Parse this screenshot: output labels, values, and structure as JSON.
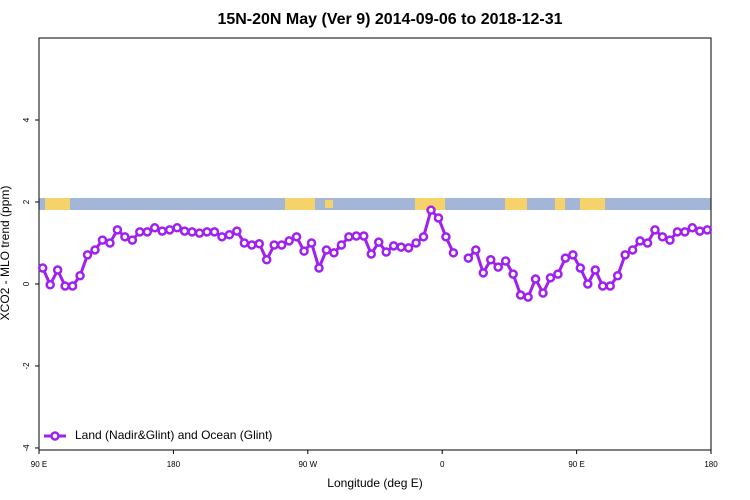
{
  "chart_data": {
    "type": "line",
    "title": "15N-20N May (Ver 9)   2014-09-06 to 2018-12-31",
    "x_label": "Longitude (deg E)",
    "y_label": "XCO2 - MLO trend (ppm)",
    "xlim": [
      90,
      540
    ],
    "xticks": [
      {
        "value": 90,
        "label": "90 E"
      },
      180,
      {
        "value": 270,
        "label": "90 W"
      },
      {
        "value": 360,
        "label": "0"
      },
      {
        "value": 450,
        "label": "90 E"
      },
      {
        "value": 540,
        "label": "180"
      }
    ],
    "ylim": [
      -4.05,
      6
    ],
    "yticks": [
      -4,
      -2,
      0,
      2,
      4
    ],
    "legend": "bottom-left",
    "x": [
      92.5,
      97.5,
      102.5,
      107.5,
      112.5,
      117.5,
      122.5,
      127.5,
      132.5,
      137.5,
      142.5,
      147.5,
      152.5,
      157.5,
      162.5,
      167.5,
      172.5,
      177.5,
      182.5,
      187.5,
      192.5,
      197.5,
      202.5,
      207.5,
      212.5,
      217.5,
      222.5,
      227.5,
      232.5,
      237.5,
      242.5,
      247.5,
      252.5,
      257.5,
      262.5,
      267.5,
      272.5,
      277.5,
      282.5,
      287.5,
      292.5,
      297.5,
      302.5,
      307.5,
      312.5,
      317.5,
      322.5,
      327.5,
      332.5,
      337.5,
      342.5,
      347.5,
      352.5,
      357.5,
      362.5,
      367.5,
      372.5,
      377.5,
      382.5,
      387.5,
      392.5,
      397.5,
      402.5,
      407.5,
      412.5,
      417.5,
      422.5,
      427.5,
      432.5,
      437.5,
      442.5,
      447.5,
      452.5,
      457.5,
      462.5,
      467.5,
      472.5,
      477.5,
      482.5,
      487.5,
      492.5,
      497.5,
      502.5,
      507.5,
      512.5,
      517.5,
      522.5,
      527.5,
      532.5,
      537.5
    ],
    "series": [
      {
        "name": "Land (Nadir&Glint) and Ocean (Glint)",
        "color": "#a020f0",
        "values": [
          0.39,
          -0.02,
          0.34,
          -0.05,
          -0.05,
          0.2,
          0.71,
          0.83,
          1.07,
          1.0,
          1.32,
          1.15,
          1.07,
          1.27,
          1.27,
          1.37,
          1.29,
          1.32,
          1.37,
          1.29,
          1.27,
          1.24,
          1.27,
          1.27,
          1.15,
          1.2,
          1.29,
          1.0,
          0.95,
          0.98,
          0.59,
          0.95,
          0.95,
          1.05,
          1.15,
          0.8,
          1.0,
          0.39,
          0.83,
          0.76,
          0.95,
          1.15,
          1.17,
          1.17,
          0.73,
          1.02,
          0.78,
          0.93,
          0.9,
          0.88,
          1.0,
          1.15,
          1.8,
          1.61,
          1.15,
          0.76,
          null,
          0.63,
          0.83,
          0.27,
          0.59,
          0.41,
          0.56,
          0.24,
          -0.27,
          -0.32,
          0.12,
          -0.22,
          0.15,
          0.24,
          0.63,
          0.71,
          0.39,
          0,
          0.34,
          -0.05,
          -0.05,
          0.2,
          0.71,
          0.83,
          1.05,
          1.0,
          1.32,
          1.15,
          1.07,
          1.27,
          1.27,
          1.37,
          1.29,
          1.32
        ]
      }
    ]
  }
}
